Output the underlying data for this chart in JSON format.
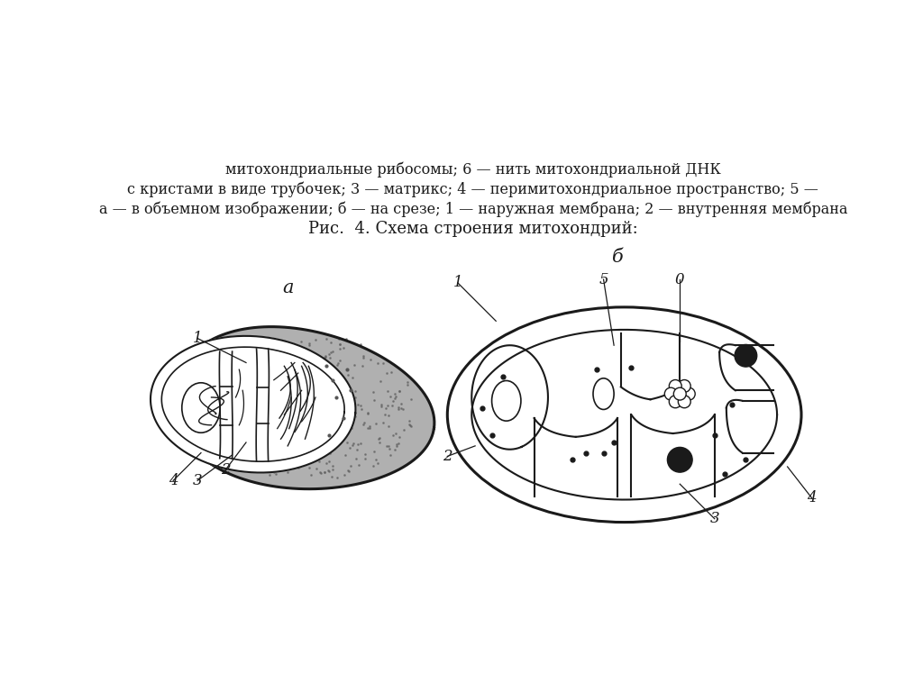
{
  "title": "Рис.  4. Схема строения митохондрий:",
  "caption_line1": "а — в объемном изображении; б — на срезе; 1 — наружная мембрана; 2 — внутренняя мембрана",
  "caption_line2": "с кристами в виде трубочек; 3 — матрикс; 4 — перимитохондриальное пространство; 5 —",
  "caption_line3": "митохондриальные рибосомы; 6 — нить митохондриальной ДНК",
  "label_a": "а",
  "label_b": "б",
  "bg_color": "#ffffff",
  "line_color": "#1a1a1a",
  "font_size_caption": 11.5,
  "font_size_title": 13,
  "font_size_labels": 12
}
